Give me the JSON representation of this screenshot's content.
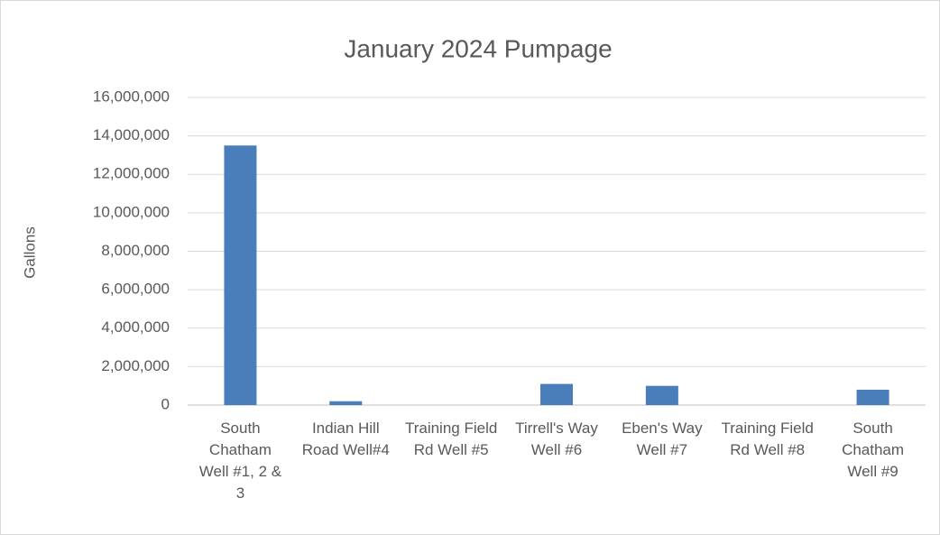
{
  "chart_data": {
    "type": "bar",
    "title": "January 2024 Pumpage",
    "y_label": "Gallons",
    "categories": [
      "South Chatham Well #1, 2 & 3",
      "Indian Hill Road Well#4",
      "Training Field Rd Well #5",
      "Tirrell's Way Well #6",
      "Eben's Way Well #7",
      "Training Field Rd Well #8",
      "South Chatham Well #9"
    ],
    "values": [
      13500000,
      200000,
      0,
      1100000,
      1000000,
      0,
      800000
    ],
    "color": "#4a7ebb",
    "ylim": [
      0,
      16000000
    ],
    "yticks": [
      {
        "value": 0,
        "label": "0"
      },
      {
        "value": 2000000,
        "label": "2,000,000"
      },
      {
        "value": 4000000,
        "label": "4,000,000"
      },
      {
        "value": 6000000,
        "label": "6,000,000"
      },
      {
        "value": 8000000,
        "label": "8,000,000"
      },
      {
        "value": 10000000,
        "label": "10,000,000"
      },
      {
        "value": 12000000,
        "label": "12,000,000"
      },
      {
        "value": 14000000,
        "label": "14,000,000"
      },
      {
        "value": 16000000,
        "label": "16,000,000"
      }
    ],
    "grid": true
  }
}
